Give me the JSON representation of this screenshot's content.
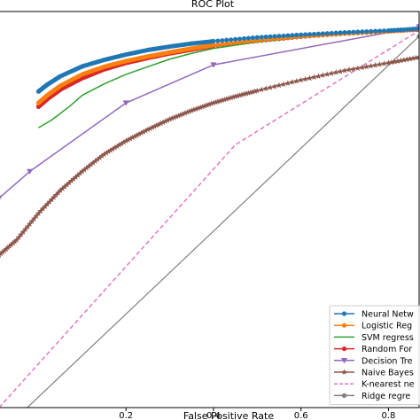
{
  "chart_data": {
    "type": "line",
    "title": "ROC Plot",
    "xlabel": "False Positive Rate",
    "ylabel": "",
    "xlim": [
      -0.09,
      0.87
    ],
    "ylim": [
      0.0,
      1.04
    ],
    "xticks": [
      0.2,
      0.4,
      0.6,
      0.8
    ],
    "xtick_labels": [
      "0.2",
      "0.4",
      "0.6",
      "0.8"
    ],
    "grid": false,
    "legend_position": "lower-right",
    "series": [
      {
        "name": "Neural Netw",
        "color": "#1f77b4",
        "marker": "circle",
        "style": "solid",
        "x": [
          0.0,
          0.02,
          0.05,
          0.1,
          0.15,
          0.2,
          0.25,
          0.3,
          0.35,
          0.4,
          0.5,
          0.6,
          0.7,
          0.8,
          0.87
        ],
        "y": [
          0.83,
          0.848,
          0.87,
          0.896,
          0.913,
          0.927,
          0.939,
          0.948,
          0.956,
          0.962,
          0.972,
          0.979,
          0.985,
          0.99,
          0.995
        ]
      },
      {
        "name": "Logistic Reg",
        "color": "#ff7f0e",
        "marker": "circle",
        "style": "solid",
        "x": [
          0.0,
          0.02,
          0.05,
          0.1,
          0.15,
          0.2,
          0.25,
          0.3,
          0.35,
          0.4,
          0.5,
          0.6,
          0.7,
          0.8,
          0.87
        ],
        "y": [
          0.8,
          0.82,
          0.845,
          0.875,
          0.895,
          0.91,
          0.922,
          0.933,
          0.943,
          0.952,
          0.965,
          0.975,
          0.982,
          0.988,
          0.994
        ]
      },
      {
        "name": "SVM regress",
        "color": "#2ca02c",
        "marker": "none",
        "style": "solid",
        "x": [
          0.0,
          0.03,
          0.07,
          0.1,
          0.15,
          0.2,
          0.25,
          0.3,
          0.35,
          0.4,
          0.5,
          0.6,
          0.7,
          0.8,
          0.87
        ],
        "y": [
          0.735,
          0.755,
          0.79,
          0.82,
          0.85,
          0.875,
          0.895,
          0.915,
          0.93,
          0.943,
          0.96,
          0.972,
          0.98,
          0.987,
          0.993
        ]
      },
      {
        "name": "Random For",
        "color": "#d62728",
        "marker": "circle",
        "style": "solid",
        "x": [
          0.0,
          0.02,
          0.05,
          0.1,
          0.15,
          0.2,
          0.25,
          0.3,
          0.35,
          0.4,
          0.5,
          0.6,
          0.7,
          0.8,
          0.87
        ],
        "y": [
          0.79,
          0.81,
          0.835,
          0.865,
          0.888,
          0.905,
          0.918,
          0.93,
          0.94,
          0.95,
          0.963,
          0.974,
          0.982,
          0.988,
          0.993
        ]
      },
      {
        "name": "Decision Tre",
        "color": "#9467bd",
        "marker": "triangle-down",
        "style": "solid",
        "x": [
          -0.09,
          -0.02,
          0.2,
          0.4,
          0.87
        ],
        "y": [
          0.55,
          0.62,
          0.8,
          0.9,
          1.0
        ]
      },
      {
        "name": "Naive Bayes",
        "color": "#8c564b",
        "marker": "star",
        "style": "solid",
        "x": [
          -0.09,
          -0.05,
          0.0,
          0.05,
          0.1,
          0.15,
          0.2,
          0.25,
          0.3,
          0.35,
          0.4,
          0.45,
          0.5,
          0.6,
          0.7,
          0.8,
          0.87
        ],
        "y": [
          0.4,
          0.44,
          0.51,
          0.57,
          0.62,
          0.665,
          0.7,
          0.73,
          0.757,
          0.78,
          0.8,
          0.817,
          0.832,
          0.86,
          0.885,
          0.905,
          0.92
        ]
      },
      {
        "name": "K-nearest ne",
        "color": "#e377c2",
        "marker": "none",
        "style": "dashed",
        "x": [
          -0.09,
          0.45,
          0.87
        ],
        "y": [
          0.0,
          0.69,
          0.99
        ]
      },
      {
        "name": "Ridge regre",
        "color": "#7f7f7f",
        "marker": "circle",
        "style": "solid",
        "x": [
          -0.09,
          0.87
        ],
        "y": [
          -0.07,
          0.975
        ]
      }
    ]
  }
}
